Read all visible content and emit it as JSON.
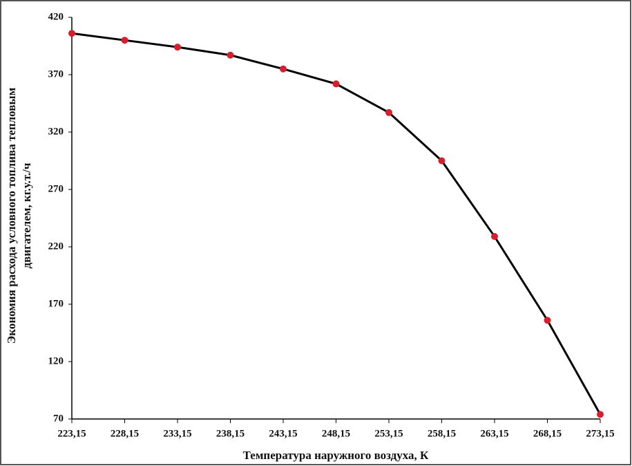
{
  "chart_data": {
    "type": "line",
    "xlabel": "Температура наружного воздуха, К",
    "ylabel": [
      "Экономия расхода условного топлива тепловым",
      "двигателем, кг.у.т./ч"
    ],
    "categories": [
      "223,15",
      "228,15",
      "233,15",
      "238,15",
      "243,15",
      "248,15",
      "253,15",
      "258,15",
      "263,15",
      "268,15",
      "273,15"
    ],
    "series": [
      {
        "color": "#000000",
        "marker_color": "#d81e2c",
        "values": [
          406,
          400,
          394,
          387,
          375,
          362,
          337,
          295,
          229,
          156,
          74
        ]
      }
    ],
    "ylim": [
      70,
      420
    ],
    "yticks": [
      70,
      120,
      170,
      220,
      270,
      320,
      370,
      420
    ],
    "grid": false
  }
}
